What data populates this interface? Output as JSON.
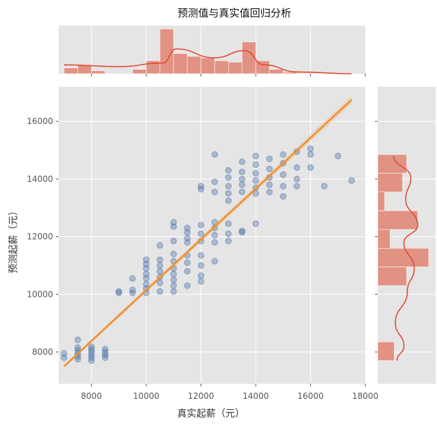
{
  "chart_data": {
    "type": "scatter",
    "title": "预测值与真实值回归分析",
    "xlabel": "真实起薪（元）",
    "ylabel": "预测起薪（元）",
    "xlim": [
      6800,
      18000
    ],
    "ylim": [
      6900,
      17200
    ],
    "xticks": [
      "8000",
      "10000",
      "12000",
      "14000",
      "16000",
      "18000"
    ],
    "yticks": [
      "8000",
      "10000",
      "12000",
      "14000",
      "16000"
    ],
    "xtick_values": [
      8000,
      10000,
      12000,
      14000,
      16000,
      18000
    ],
    "ytick_values": [
      8000,
      10000,
      12000,
      14000,
      16000
    ],
    "grid": true,
    "colors": {
      "background": "#e5e5e5",
      "points": "#4a72a8",
      "regression": "#f0902e",
      "hist": "#e07d6a",
      "kde": "#e24a33"
    },
    "regression_line": {
      "x": [
        7000,
        17500
      ],
      "y": [
        7500,
        16750
      ]
    },
    "points": [
      [
        7000,
        7800
      ],
      [
        7000,
        7950
      ],
      [
        7500,
        7750
      ],
      [
        7500,
        7850
      ],
      [
        7500,
        7950
      ],
      [
        7500,
        8050
      ],
      [
        7500,
        8150
      ],
      [
        7500,
        8420
      ],
      [
        8000,
        7700
      ],
      [
        8000,
        7800
      ],
      [
        8000,
        7900
      ],
      [
        8000,
        8000
      ],
      [
        8000,
        8100
      ],
      [
        8000,
        8180
      ],
      [
        8500,
        7800
      ],
      [
        8500,
        7900
      ],
      [
        8500,
        8000
      ],
      [
        8500,
        8100
      ],
      [
        9000,
        10050
      ],
      [
        9000,
        10100
      ],
      [
        9500,
        10050
      ],
      [
        9500,
        10150
      ],
      [
        9500,
        10550
      ],
      [
        10000,
        10050
      ],
      [
        10000,
        10200
      ],
      [
        10000,
        10350
      ],
      [
        10000,
        10550
      ],
      [
        10000,
        10700
      ],
      [
        10000,
        10900
      ],
      [
        10000,
        11050
      ],
      [
        10000,
        11200
      ],
      [
        10500,
        10100
      ],
      [
        10500,
        10400
      ],
      [
        10500,
        10600
      ],
      [
        10500,
        10800
      ],
      [
        10500,
        11000
      ],
      [
        10500,
        11200
      ],
      [
        10500,
        11700
      ],
      [
        11000,
        10100
      ],
      [
        11000,
        10300
      ],
      [
        11000,
        10500
      ],
      [
        11000,
        10700
      ],
      [
        11000,
        10900
      ],
      [
        11000,
        11150
      ],
      [
        11000,
        11400
      ],
      [
        11000,
        11850
      ],
      [
        11000,
        12350
      ],
      [
        11000,
        12500
      ],
      [
        11500,
        10300
      ],
      [
        11500,
        10800
      ],
      [
        11500,
        11100
      ],
      [
        11500,
        11350
      ],
      [
        11500,
        11800
      ],
      [
        11500,
        11950
      ],
      [
        11500,
        12150
      ],
      [
        11500,
        12300
      ],
      [
        12000,
        10450
      ],
      [
        12000,
        10650
      ],
      [
        12000,
        11000
      ],
      [
        12000,
        11350
      ],
      [
        12000,
        11850
      ],
      [
        12000,
        12100
      ],
      [
        12000,
        12400
      ],
      [
        12000,
        13650
      ],
      [
        12000,
        13750
      ],
      [
        12500,
        11150
      ],
      [
        12500,
        11800
      ],
      [
        12500,
        12050
      ],
      [
        12500,
        12300
      ],
      [
        12500,
        12500
      ],
      [
        12500,
        13550
      ],
      [
        12500,
        13900
      ],
      [
        12500,
        14850
      ],
      [
        13000,
        11850
      ],
      [
        13000,
        12100
      ],
      [
        13000,
        12450
      ],
      [
        13000,
        13250
      ],
      [
        13000,
        13500
      ],
      [
        13000,
        13750
      ],
      [
        13000,
        14050
      ],
      [
        13000,
        14300
      ],
      [
        13500,
        12150
      ],
      [
        13500,
        12200
      ],
      [
        13500,
        13550
      ],
      [
        13500,
        13800
      ],
      [
        13500,
        14000
      ],
      [
        13500,
        14250
      ],
      [
        13500,
        14600
      ],
      [
        14000,
        12450
      ],
      [
        14000,
        13500
      ],
      [
        14000,
        13700
      ],
      [
        14000,
        13950
      ],
      [
        14000,
        14200
      ],
      [
        14000,
        14500
      ],
      [
        14000,
        14800
      ],
      [
        14500,
        13550
      ],
      [
        14500,
        13800
      ],
      [
        14500,
        14050
      ],
      [
        14500,
        14350
      ],
      [
        14500,
        14700
      ],
      [
        15000,
        13400
      ],
      [
        15000,
        13750
      ],
      [
        15000,
        14150
      ],
      [
        15000,
        14550
      ],
      [
        15000,
        14850
      ],
      [
        15500,
        13750
      ],
      [
        15500,
        14000
      ],
      [
        15500,
        14400
      ],
      [
        15500,
        14950
      ],
      [
        16000,
        14400
      ],
      [
        16000,
        14850
      ],
      [
        16000,
        15050
      ],
      [
        16500,
        13750
      ],
      [
        17000,
        14800
      ],
      [
        17500,
        13950
      ]
    ],
    "top_hist": {
      "bins": [
        7000,
        7500,
        8000,
        8500,
        9000,
        9500,
        10000,
        10500,
        11000,
        11500,
        12000,
        12500,
        13000,
        13500,
        14000,
        14500,
        15000,
        15500,
        16000,
        16500,
        17000,
        17500
      ],
      "counts": [
        4,
        6,
        2,
        0,
        0,
        3,
        9,
        31,
        14,
        12,
        11,
        9,
        8,
        22,
        9,
        3,
        1,
        0,
        0,
        0,
        0
      ]
    },
    "right_hist": {
      "bins": [
        7700,
        8350,
        9000,
        9650,
        10300,
        10950,
        11600,
        12250,
        12900,
        13550,
        14200,
        14850
      ],
      "counts": [
        12,
        0,
        0,
        0,
        21,
        37,
        9,
        29,
        5,
        18,
        21,
        6
      ]
    },
    "top_kde": {
      "x": [
        7000,
        9000,
        10600,
        11100,
        12500,
        13600,
        14300,
        15500,
        17500
      ],
      "y": [
        5,
        4,
        6,
        14,
        9,
        13,
        5,
        1,
        0
      ]
    },
    "right_kde": {
      "y": [
        7700,
        8200,
        9000,
        10100,
        10900,
        11800,
        12400,
        13300,
        14050,
        14800
      ],
      "x": [
        4,
        8,
        3,
        10,
        14,
        8,
        16,
        9,
        12,
        2
      ]
    }
  }
}
